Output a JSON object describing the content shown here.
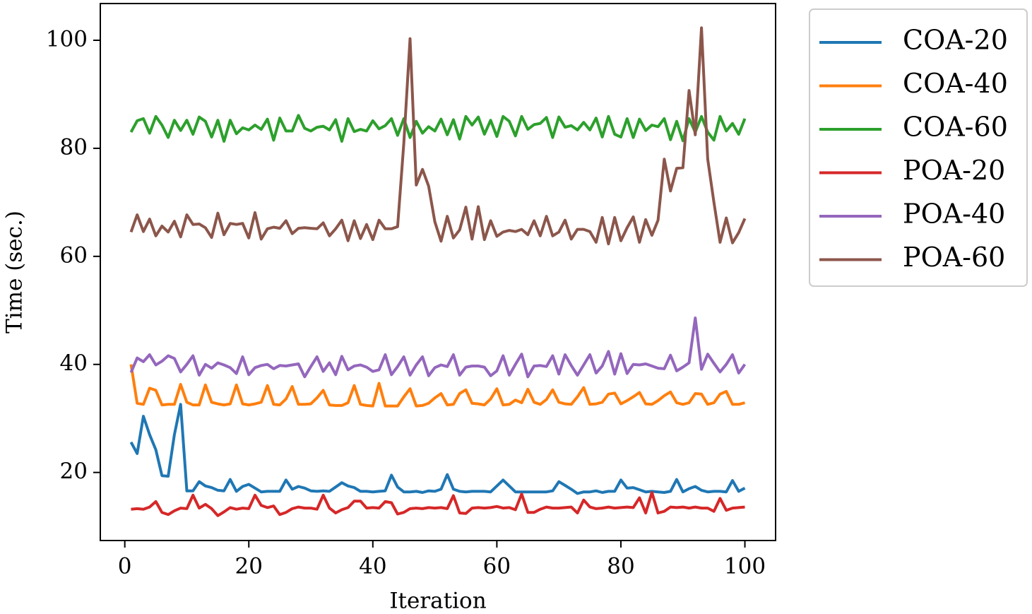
{
  "chart_data": {
    "type": "line",
    "xlabel": "Iteration",
    "ylabel": "Time (sec.)",
    "x": [
      1,
      2,
      3,
      4,
      5,
      6,
      7,
      8,
      9,
      10,
      11,
      12,
      13,
      14,
      15,
      16,
      17,
      18,
      19,
      20,
      21,
      22,
      23,
      24,
      25,
      26,
      27,
      28,
      29,
      30,
      31,
      32,
      33,
      34,
      35,
      36,
      37,
      38,
      39,
      40,
      41,
      42,
      43,
      44,
      45,
      46,
      47,
      48,
      49,
      50,
      51,
      52,
      53,
      54,
      55,
      56,
      57,
      58,
      59,
      60,
      61,
      62,
      63,
      64,
      65,
      66,
      67,
      68,
      69,
      70,
      71,
      72,
      73,
      74,
      75,
      76,
      77,
      78,
      79,
      80,
      81,
      82,
      83,
      84,
      85,
      86,
      87,
      88,
      89,
      90,
      91,
      92,
      93,
      94,
      95,
      96,
      97,
      98,
      99,
      100
    ],
    "xlim": [
      -3.95,
      104.95
    ],
    "xticks": [
      0,
      20,
      40,
      60,
      80,
      100
    ],
    "ylim": [
      7.4,
      106.8
    ],
    "yticks": [
      20,
      40,
      60,
      80,
      100
    ],
    "legend": "outside-upper-right",
    "series": [
      {
        "name": "COA-20",
        "color": "#1f77b4",
        "values": [
          25.6,
          23.5,
          30.4,
          27.0,
          24.2,
          19.4,
          19.3,
          27.0,
          32.6,
          16.6,
          16.6,
          18.3,
          17.5,
          17.2,
          16.7,
          16.6,
          18.7,
          16.5,
          17.4,
          17.8,
          17.1,
          16.4,
          16.5,
          16.5,
          16.5,
          18.6,
          16.9,
          17.4,
          17.1,
          16.6,
          16.5,
          16.6,
          16.5,
          17.3,
          18.1,
          17.5,
          17.2,
          16.5,
          16.5,
          16.4,
          16.5,
          16.6,
          19.5,
          17.3,
          16.4,
          16.4,
          16.5,
          16.3,
          16.6,
          16.5,
          16.9,
          19.6,
          16.9,
          16.5,
          16.4,
          16.5,
          16.5,
          16.5,
          16.4,
          17.5,
          18.6,
          17.5,
          16.4,
          16.4,
          16.4,
          16.4,
          16.4,
          16.4,
          16.6,
          18.3,
          17.6,
          16.9,
          16.1,
          16.4,
          16.4,
          16.6,
          16.3,
          16.5,
          16.5,
          18.6,
          17.1,
          17.2,
          16.8,
          16.4,
          16.5,
          16.4,
          16.3,
          16.5,
          18.7,
          16.4,
          17.0,
          17.4,
          16.7,
          16.4,
          16.5,
          16.5,
          16.4,
          18.5,
          16.5,
          17.1
        ]
      },
      {
        "name": "COA-40",
        "color": "#ff7f0e",
        "values": [
          40.0,
          32.8,
          32.6,
          35.6,
          35.2,
          32.5,
          32.6,
          32.6,
          36.3,
          33.0,
          32.5,
          32.5,
          36.2,
          33.0,
          32.7,
          32.5,
          32.7,
          36.2,
          32.7,
          32.5,
          32.7,
          33.0,
          36.1,
          32.6,
          32.5,
          33.6,
          35.9,
          32.6,
          32.6,
          32.7,
          33.8,
          35.2,
          32.5,
          32.4,
          32.4,
          32.9,
          36.1,
          32.6,
          32.4,
          32.3,
          36.5,
          32.3,
          32.3,
          32.3,
          34.0,
          35.5,
          32.3,
          32.4,
          32.8,
          33.8,
          34.6,
          32.5,
          32.6,
          34.6,
          35.3,
          32.8,
          32.7,
          32.5,
          33.6,
          35.5,
          32.5,
          32.6,
          33.4,
          32.9,
          35.4,
          33.0,
          32.6,
          33.5,
          35.3,
          33.0,
          32.7,
          32.6,
          34.0,
          35.7,
          32.6,
          32.7,
          33.0,
          34.5,
          34.7,
          32.7,
          33.3,
          34.0,
          34.8,
          32.7,
          32.6,
          33.3,
          34.2,
          34.9,
          32.9,
          32.6,
          32.9,
          34.6,
          34.5,
          32.6,
          32.9,
          34.5,
          35.0,
          32.6,
          32.6,
          32.9
        ]
      },
      {
        "name": "COA-60",
        "color": "#2ca02c",
        "values": [
          83.0,
          85.1,
          85.5,
          82.8,
          85.9,
          84.3,
          82.0,
          85.2,
          83.3,
          85.2,
          82.6,
          85.8,
          85.0,
          82.1,
          85.2,
          81.3,
          85.2,
          82.7,
          83.8,
          83.4,
          84.3,
          83.5,
          85.4,
          81.5,
          85.6,
          83.2,
          83.2,
          86.1,
          83.7,
          83.2,
          83.9,
          84.1,
          83.4,
          85.3,
          81.3,
          85.5,
          83.1,
          83.5,
          83.2,
          85.1,
          83.6,
          84.2,
          85.5,
          82.4,
          85.5,
          82.0,
          85.0,
          82.8,
          84.0,
          83.2,
          85.4,
          82.5,
          85.3,
          81.7,
          85.9,
          84.3,
          85.8,
          82.6,
          85.2,
          82.2,
          85.9,
          85.0,
          82.3,
          85.9,
          83.5,
          84.4,
          84.6,
          85.7,
          82.0,
          85.8,
          83.9,
          84.2,
          83.4,
          84.8,
          83.4,
          85.6,
          82.1,
          85.9,
          82.6,
          82.1,
          85.5,
          82.0,
          85.4,
          83.3,
          84.3,
          84.0,
          85.5,
          81.6,
          85.0,
          81.4,
          85.5,
          83.0,
          85.9,
          83.0,
          81.5,
          85.9,
          83.2,
          84.6,
          82.6,
          85.5
        ]
      },
      {
        "name": "POA-20",
        "color": "#d62728",
        "values": [
          13.2,
          13.3,
          13.2,
          13.6,
          14.6,
          12.6,
          12.2,
          12.9,
          13.4,
          13.3,
          15.8,
          13.4,
          14.1,
          13.3,
          12.0,
          12.7,
          13.5,
          13.2,
          13.4,
          13.3,
          15.8,
          13.9,
          13.5,
          13.8,
          12.2,
          12.6,
          13.3,
          13.6,
          13.4,
          13.4,
          13.2,
          15.8,
          13.4,
          12.5,
          13.1,
          13.5,
          14.7,
          14.7,
          13.4,
          13.5,
          13.4,
          14.6,
          14.4,
          12.3,
          12.6,
          13.3,
          13.4,
          13.3,
          13.5,
          13.4,
          13.5,
          13.3,
          15.7,
          12.5,
          12.4,
          13.4,
          13.5,
          13.4,
          13.5,
          13.7,
          13.4,
          13.5,
          13.1,
          16.0,
          12.6,
          12.6,
          13.2,
          13.6,
          13.4,
          13.4,
          13.5,
          13.6,
          12.5,
          14.9,
          13.6,
          13.3,
          13.4,
          13.6,
          13.4,
          13.5,
          13.6,
          13.5,
          15.3,
          12.5,
          16.3,
          12.5,
          12.8,
          13.6,
          13.5,
          13.6,
          13.4,
          13.6,
          13.4,
          13.4,
          12.8,
          15.2,
          13.0,
          13.4,
          13.5,
          13.6
        ]
      },
      {
        "name": "POA-40",
        "color": "#9467bd",
        "values": [
          38.5,
          41.2,
          40.5,
          41.8,
          39.9,
          40.6,
          41.6,
          41.1,
          38.6,
          40.0,
          41.6,
          38.0,
          40.0,
          39.3,
          40.3,
          39.9,
          39.4,
          38.3,
          41.4,
          38.1,
          39.4,
          39.8,
          40.0,
          39.2,
          39.8,
          39.7,
          39.9,
          40.1,
          37.7,
          39.6,
          41.4,
          38.7,
          40.3,
          38.1,
          41.5,
          39.0,
          39.7,
          39.9,
          39.5,
          38.7,
          39.0,
          41.8,
          38.1,
          39.6,
          41.4,
          38.0,
          39.9,
          41.4,
          37.9,
          39.4,
          39.9,
          39.6,
          41.8,
          38.0,
          39.5,
          39.7,
          39.7,
          39.5,
          37.9,
          38.8,
          41.6,
          38.0,
          40.0,
          41.9,
          37.7,
          39.7,
          39.8,
          39.6,
          41.6,
          38.2,
          41.8,
          39.8,
          38.0,
          39.9,
          41.8,
          38.4,
          39.7,
          42.4,
          38.2,
          42.0,
          38.3,
          40.0,
          39.9,
          40.1,
          39.7,
          39.3,
          39.2,
          41.7,
          38.8,
          39.5,
          40.3,
          48.6,
          39.1,
          41.9,
          40.2,
          38.6,
          40.0,
          41.8,
          38.4,
          40.0
        ]
      },
      {
        "name": "POA-60",
        "color": "#8c564b",
        "values": [
          64.5,
          67.7,
          64.6,
          66.9,
          63.8,
          65.6,
          64.5,
          66.5,
          63.6,
          67.7,
          65.9,
          66.0,
          65.3,
          63.5,
          68.0,
          64.0,
          66.1,
          65.9,
          66.1,
          63.4,
          68.1,
          63.2,
          65.1,
          65.4,
          65.2,
          66.6,
          64.2,
          65.2,
          65.3,
          65.2,
          65.1,
          66.2,
          63.8,
          65.1,
          66.7,
          62.9,
          66.6,
          63.3,
          65.9,
          63.1,
          66.7,
          65.1,
          65.1,
          65.5,
          81.0,
          100.3,
          73.2,
          76.1,
          73.0,
          66.4,
          62.8,
          67.4,
          63.4,
          64.9,
          69.1,
          63.2,
          69.2,
          63.1,
          66.6,
          63.7,
          64.5,
          64.8,
          64.6,
          65.0,
          64.0,
          66.6,
          63.8,
          67.4,
          63.8,
          64.5,
          66.7,
          63.2,
          65.0,
          65.0,
          64.6,
          62.6,
          67.2,
          62.3,
          67.2,
          62.9,
          65.3,
          67.3,
          62.6,
          66.8,
          63.9,
          66.7,
          78.0,
          72.1,
          76.3,
          76.4,
          90.7,
          82.5,
          102.3,
          78.0,
          70.0,
          62.6,
          67.1,
          62.5,
          64.4,
          67.0
        ]
      }
    ]
  }
}
